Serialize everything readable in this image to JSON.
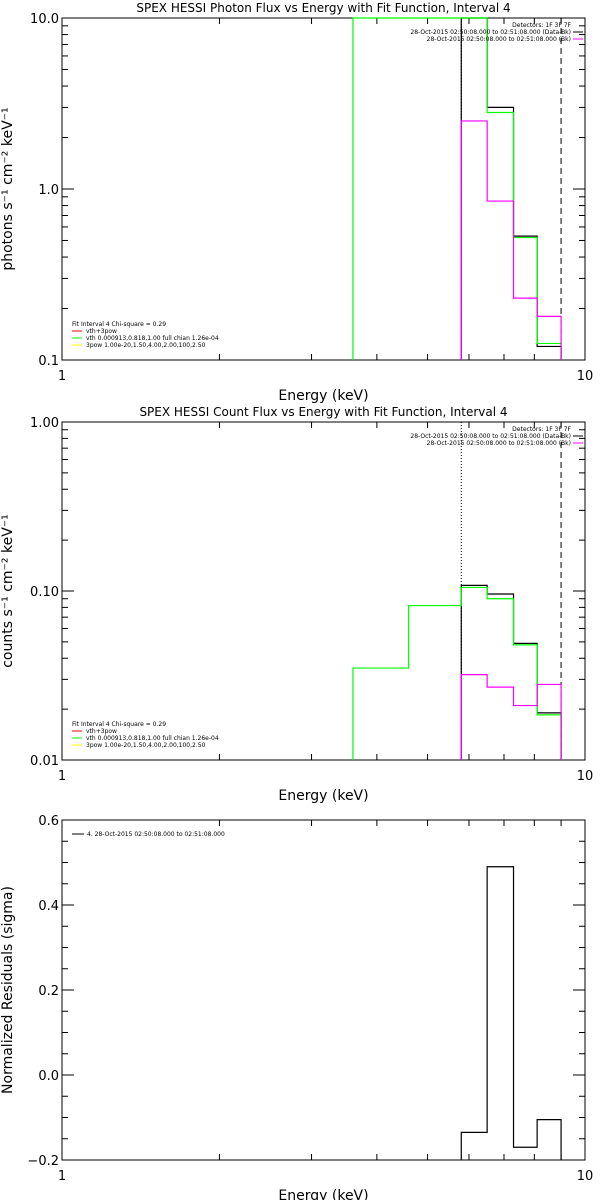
{
  "colors": {
    "data": "#000000",
    "bkg": "#ff00ff",
    "fit": "#00ff00",
    "vth": "#ff0000",
    "power": "#ffff00"
  },
  "chart_data": [
    {
      "type": "line",
      "title": "SPEX HESSI Photon Flux vs Energy with Fit Function, Interval 4",
      "xlabel": "Energy (keV)",
      "ylabel": "photons s⁻¹ cm⁻² keV⁻¹",
      "xscale": "log",
      "yscale": "log",
      "xlim": [
        1,
        10
      ],
      "ylim": [
        0.1,
        10
      ],
      "xticks": [
        {
          "v": 1,
          "label": "1"
        },
        {
          "v": 10,
          "label": "10"
        }
      ],
      "yticks": [
        {
          "v": 0.1,
          "label": "0.1"
        },
        {
          "v": 1,
          "label": "1.0"
        },
        {
          "v": 10,
          "label": "10.0"
        }
      ],
      "vlines": [
        {
          "x": 5.8,
          "style": "dotted"
        },
        {
          "x": 9.0,
          "style": "dashed"
        }
      ],
      "legend_top": [
        "Detectors: 1F 3F 7F",
        "28-Oct-2015 02:50:08.000 to 02:51:08.000 (Data-Bk)",
        "28-Oct-2015 02:50:08.000 to 02:51:08.000 (Bk)"
      ],
      "legend_bottom": [
        "Fit Interval 4   Chi-square = 0.29",
        "vth+3pow",
        "vth 0.000913,0.818,1.00  full chian 1.26e-04",
        "3pow 1.00e-20,1.50,4.00,2.00,100,2.50"
      ],
      "series": [
        {
          "name": "Data-Bk",
          "color": "#000000",
          "edges": [
            5.8,
            6.5,
            7.3,
            8.1,
            9.0
          ],
          "values": [
            10.0,
            3.0,
            0.53,
            0.12
          ]
        },
        {
          "name": "Fit",
          "color": "#00ff00",
          "edges": [
            3.6,
            4.1,
            4.6,
            5.2,
            5.8,
            6.5,
            7.3,
            8.1,
            9.0
          ],
          "values": [
            10.0,
            10.0,
            10.0,
            10.0,
            10.0,
            2.8,
            0.52,
            0.125
          ]
        },
        {
          "name": "Bk",
          "color": "#ff00ff",
          "edges": [
            5.8,
            6.5,
            7.3,
            8.1,
            9.0
          ],
          "values": [
            2.5,
            0.85,
            0.23,
            0.18
          ]
        }
      ]
    },
    {
      "type": "line",
      "title": "SPEX HESSI Count Flux vs Energy with Fit Function, Interval 4",
      "xlabel": "Energy (keV)",
      "ylabel": "counts s⁻¹ cm⁻² keV⁻¹",
      "xscale": "log",
      "yscale": "log",
      "xlim": [
        1,
        10
      ],
      "ylim": [
        0.01,
        1
      ],
      "xticks": [
        {
          "v": 1,
          "label": "1"
        },
        {
          "v": 10,
          "label": "10"
        }
      ],
      "yticks": [
        {
          "v": 0.01,
          "label": "0.01"
        },
        {
          "v": 0.1,
          "label": "0.10"
        },
        {
          "v": 1,
          "label": "1.00"
        }
      ],
      "vlines": [
        {
          "x": 5.8,
          "style": "dotted"
        },
        {
          "x": 9.0,
          "style": "dashed"
        }
      ],
      "legend_top": [
        "Detectors: 1F 3F 7F",
        "28-Oct-2015 02:50:08.000 to 02:51:08.000 (Data-Bk)",
        "28-Oct-2015 02:50:08.000 to 02:51:08.000 (Bk)"
      ],
      "legend_bottom": [
        "Fit Interval 4   Chi-square = 0.29",
        "vth+3pow",
        "vth 0.000913,0.818,1.00  full chian 1.26e-04",
        "3pow 1.00e-20,1.50,4.00,2.00,100,2.50"
      ],
      "series": [
        {
          "name": "Data-Bk",
          "color": "#000000",
          "edges": [
            5.8,
            6.5,
            7.3,
            8.1,
            9.0
          ],
          "values": [
            0.108,
            0.096,
            0.049,
            0.019
          ]
        },
        {
          "name": "Fit",
          "color": "#00ff00",
          "edges": [
            3.6,
            4.6,
            5.8,
            6.5,
            7.3,
            8.1,
            9.0
          ],
          "values": [
            0.035,
            0.082,
            0.105,
            0.09,
            0.048,
            0.0185
          ]
        },
        {
          "name": "Bk",
          "color": "#ff00ff",
          "edges": [
            5.8,
            6.5,
            7.3,
            8.1,
            9.0
          ],
          "values": [
            0.032,
            0.027,
            0.021,
            0.028
          ]
        }
      ]
    },
    {
      "type": "line",
      "title": "",
      "xlabel": "Energy (keV)",
      "ylabel": "Normalized Residuals (sigma)",
      "xscale": "log",
      "yscale": "linear",
      "xlim": [
        1,
        10
      ],
      "ylim": [
        -0.2,
        0.6
      ],
      "xticks": [
        {
          "v": 1,
          "label": "1"
        },
        {
          "v": 10,
          "label": "10"
        }
      ],
      "yticks": [
        {
          "v": -0.2,
          "label": "−0.2"
        },
        {
          "v": 0,
          "label": "0.0"
        },
        {
          "v": 0.2,
          "label": "0.2"
        },
        {
          "v": 0.4,
          "label": "0.4"
        },
        {
          "v": 0.6,
          "label": "0.6"
        }
      ],
      "legend_line": "4. 28-Oct-2015 02:50:08.000 to 02:51:08.000",
      "series": [
        {
          "name": "Residuals",
          "color": "#000000",
          "edges": [
            5.8,
            6.5,
            7.3,
            8.1,
            9.0
          ],
          "values": [
            -0.135,
            0.49,
            -0.17,
            -0.105
          ]
        }
      ]
    }
  ]
}
